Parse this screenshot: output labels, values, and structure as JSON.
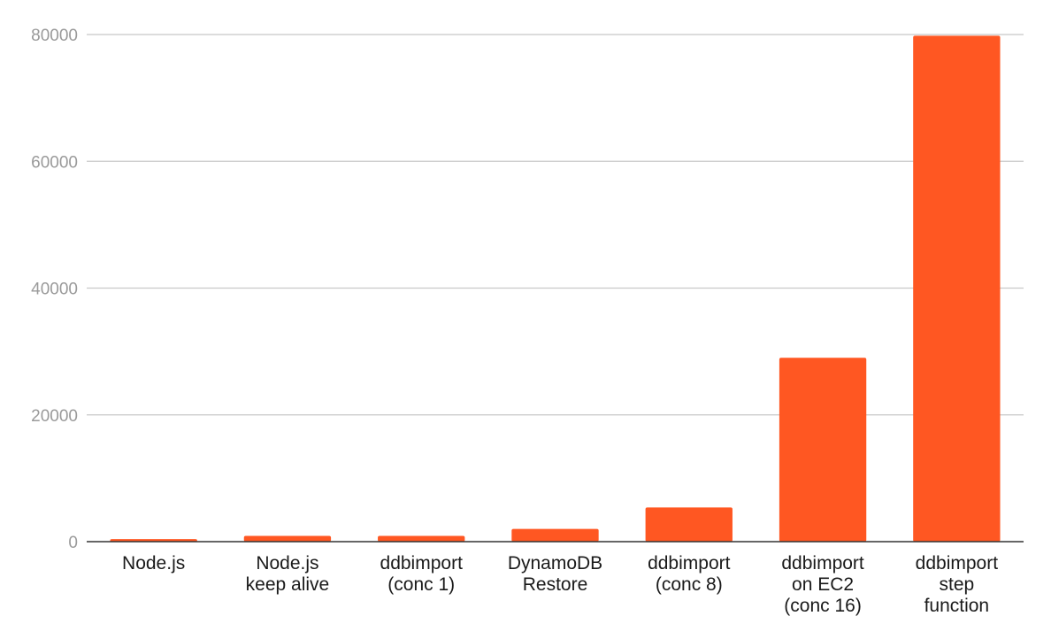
{
  "chart_data": {
    "type": "bar",
    "title": "",
    "xlabel": "",
    "ylabel": "",
    "ylim": [
      0,
      80000
    ],
    "yticks": [
      0,
      20000,
      40000,
      60000,
      80000
    ],
    "grid": true,
    "legend": "none",
    "colors": {
      "bar": "#ff5722",
      "grid": "#c8c8c8",
      "axis": "#333333"
    },
    "categories": [
      [
        "Node.js"
      ],
      [
        "Node.js",
        "keep alive"
      ],
      [
        "ddbimport",
        "(conc 1)"
      ],
      [
        "DynamoDB",
        "Restore"
      ],
      [
        "ddbimport",
        "(conc 8)"
      ],
      [
        "ddbimport",
        "on EC2",
        "(conc 16)"
      ],
      [
        "ddbimport",
        "step",
        "function"
      ]
    ],
    "values": [
      400,
      900,
      900,
      2000,
      5400,
      29000,
      79800
    ]
  }
}
